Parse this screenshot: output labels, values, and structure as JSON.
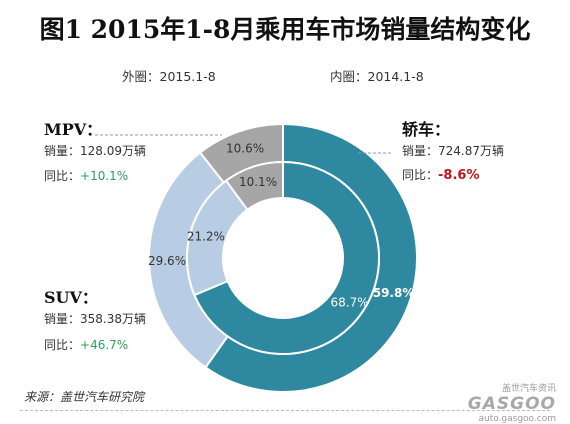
{
  "header": {
    "title": "图1 2015年1-8月乘用车市场销量结构变化",
    "outer_ring_label": "外圈：2015.1-8",
    "inner_ring_label": "内圈：2014.1-8"
  },
  "colors": {
    "sedan": "#2e88a0",
    "suv": "#b8cde4",
    "mpv": "#a6a6a6",
    "positive": "#2e9e5e",
    "negative": "#c0141b"
  },
  "legend_blocks": {
    "mpv": {
      "title": "MPV：",
      "sales": "销量：128.09万辆",
      "yoy_prefix": "同比：",
      "yoy": "+10.1%"
    },
    "sedan": {
      "title": "轿车：",
      "sales": "销量：724.87万辆",
      "yoy_prefix": "同比：",
      "yoy": "-8.6%"
    },
    "suv": {
      "title": "SUV：",
      "sales": "销量：358.38万辆",
      "yoy_prefix": "同比：",
      "yoy": "+46.7%"
    }
  },
  "chart_data": {
    "type": "pie",
    "subtype": "nested-donut",
    "categories": [
      "轿车",
      "SUV",
      "MPV"
    ],
    "series": [
      {
        "ring": "outer",
        "period": "2015.1-8",
        "values": [
          59.8,
          29.6,
          10.6
        ],
        "labels": [
          "59.8%",
          "29.6%",
          "10.6%"
        ]
      },
      {
        "ring": "inner",
        "period": "2014.1-8",
        "values": [
          68.7,
          21.2,
          10.1
        ],
        "labels": [
          "68.7%",
          "21.2%",
          "10.1%"
        ]
      }
    ],
    "legend": "side-annotations"
  },
  "footer": {
    "source": "来源：盖世汽车研究院",
    "watermark_top": "盖世汽车资讯",
    "watermark_logo": "GASGOO",
    "watermark_url": "auto.gasgoo.com"
  }
}
